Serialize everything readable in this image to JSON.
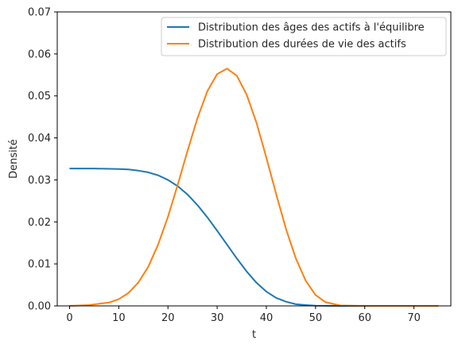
{
  "chart_data": {
    "type": "line",
    "xlabel": "t",
    "ylabel": "Densité",
    "xlim": [
      -2.5,
      77.5
    ],
    "ylim": [
      0,
      0.07
    ],
    "xticks": [
      0,
      10,
      20,
      30,
      40,
      50,
      60,
      70
    ],
    "yticks": [
      "0.00",
      "0.01",
      "0.02",
      "0.03",
      "0.04",
      "0.05",
      "0.06",
      "0.07"
    ],
    "legend_position": "top-right",
    "series": [
      {
        "name": "Distribution des âges des actifs à l'équilibre",
        "color": "#1f77b4",
        "x": [
          0,
          5,
          10,
          12,
          14,
          16,
          18,
          20,
          22,
          24,
          26,
          28,
          30,
          32,
          34,
          36,
          38,
          40,
          42,
          44,
          46,
          48,
          50,
          55,
          60,
          65,
          70,
          75
        ],
        "y": [
          0.0327,
          0.0327,
          0.0326,
          0.0325,
          0.0322,
          0.0318,
          0.0311,
          0.03,
          0.0285,
          0.0265,
          0.024,
          0.0211,
          0.0179,
          0.0146,
          0.0113,
          0.0082,
          0.0055,
          0.0034,
          0.0019,
          0.001,
          0.0004,
          0.0002,
          5e-05,
          0.0,
          0.0,
          0.0,
          0.0,
          0.0
        ]
      },
      {
        "name": "Distribution des durées de vie des actifs",
        "color": "#ff7f0e",
        "x": [
          0,
          4,
          8,
          10,
          12,
          14,
          16,
          18,
          20,
          22,
          24,
          26,
          28,
          30,
          32,
          34,
          36,
          38,
          40,
          42,
          44,
          46,
          48,
          50,
          52,
          55,
          60,
          65,
          70,
          75
        ],
        "y": [
          0.0,
          0.0002,
          0.0008,
          0.0016,
          0.0031,
          0.0056,
          0.0093,
          0.0146,
          0.0212,
          0.0289,
          0.037,
          0.0447,
          0.0511,
          0.0552,
          0.0565,
          0.0548,
          0.0503,
          0.0436,
          0.0353,
          0.0266,
          0.0183,
          0.0113,
          0.006,
          0.0026,
          0.0009,
          0.0001,
          0.0,
          0.0,
          0.0,
          0.0
        ]
      }
    ]
  }
}
